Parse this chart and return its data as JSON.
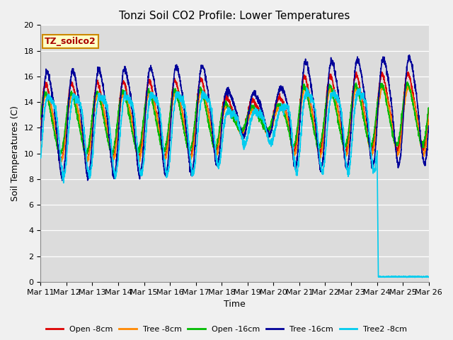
{
  "title": "Tonzi Soil CO2 Profile: Lower Temperatures",
  "ylabel": "Soil Temperatures (C)",
  "xlabel": "Time",
  "label_box_text": "TZ_soilco2",
  "ylim": [
    0,
    20
  ],
  "xlim": [
    0,
    15
  ],
  "x_tick_labels": [
    "Mar 11",
    "Mar 12",
    "Mar 13",
    "Mar 14",
    "Mar 15",
    "Mar 16",
    "Mar 17",
    "Mar 18",
    "Mar 19",
    "Mar 20",
    "Mar 21",
    "Mar 22",
    "Mar 23",
    "Mar 24",
    "Mar 25",
    "Mar 26"
  ],
  "series_colors": {
    "open8": "#DD0000",
    "tree8": "#FF8800",
    "open16": "#00BB00",
    "tree16": "#000099",
    "tree2_8": "#00CCEE"
  },
  "series_labels": [
    "Open -8cm",
    "Tree -8cm",
    "Open -16cm",
    "Tree -16cm",
    "Tree2 -8cm"
  ],
  "plot_bg": "#DCDCDC",
  "fig_bg": "#F0F0F0",
  "grid_color": "#FFFFFF",
  "title_fontsize": 11,
  "axis_fontsize": 9,
  "tick_fontsize": 8
}
